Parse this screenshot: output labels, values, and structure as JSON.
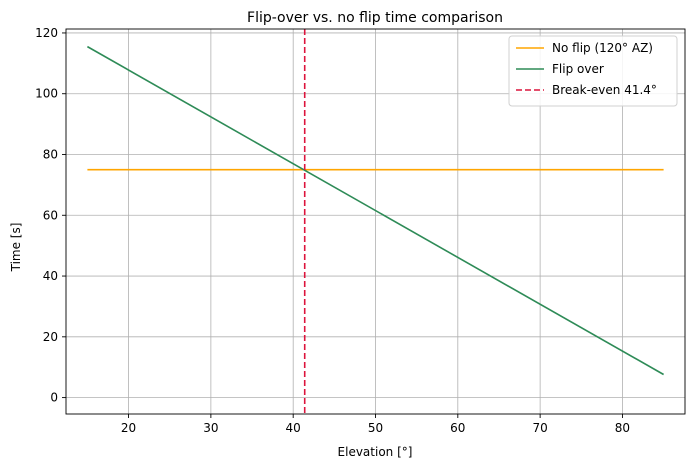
{
  "chart_data": {
    "type": "line",
    "title": "Flip-over vs. no flip time comparison",
    "xlabel": "Elevation [°]",
    "ylabel": "Time [s]",
    "xlim": [
      12.4,
      87.6
    ],
    "ylim": [
      -5.4,
      121.3
    ],
    "xticks": [
      20,
      30,
      40,
      50,
      60,
      70,
      80
    ],
    "yticks": [
      0,
      20,
      40,
      60,
      80,
      100,
      120
    ],
    "grid": true,
    "legend_position": "top-right",
    "series": [
      {
        "name": "No flip (120° AZ)",
        "color": "#FFA500",
        "style": "solid",
        "x": [
          15,
          85
        ],
        "y": [
          75,
          75
        ]
      },
      {
        "name": "Flip over",
        "color": "#2E8B57",
        "style": "solid",
        "x": [
          15,
          85
        ],
        "y": [
          115.5,
          7.6
        ]
      }
    ],
    "vlines": [
      {
        "name": "Break-even 41.4°",
        "color": "#DC143C",
        "style": "dashed",
        "x": 41.4
      }
    ]
  }
}
